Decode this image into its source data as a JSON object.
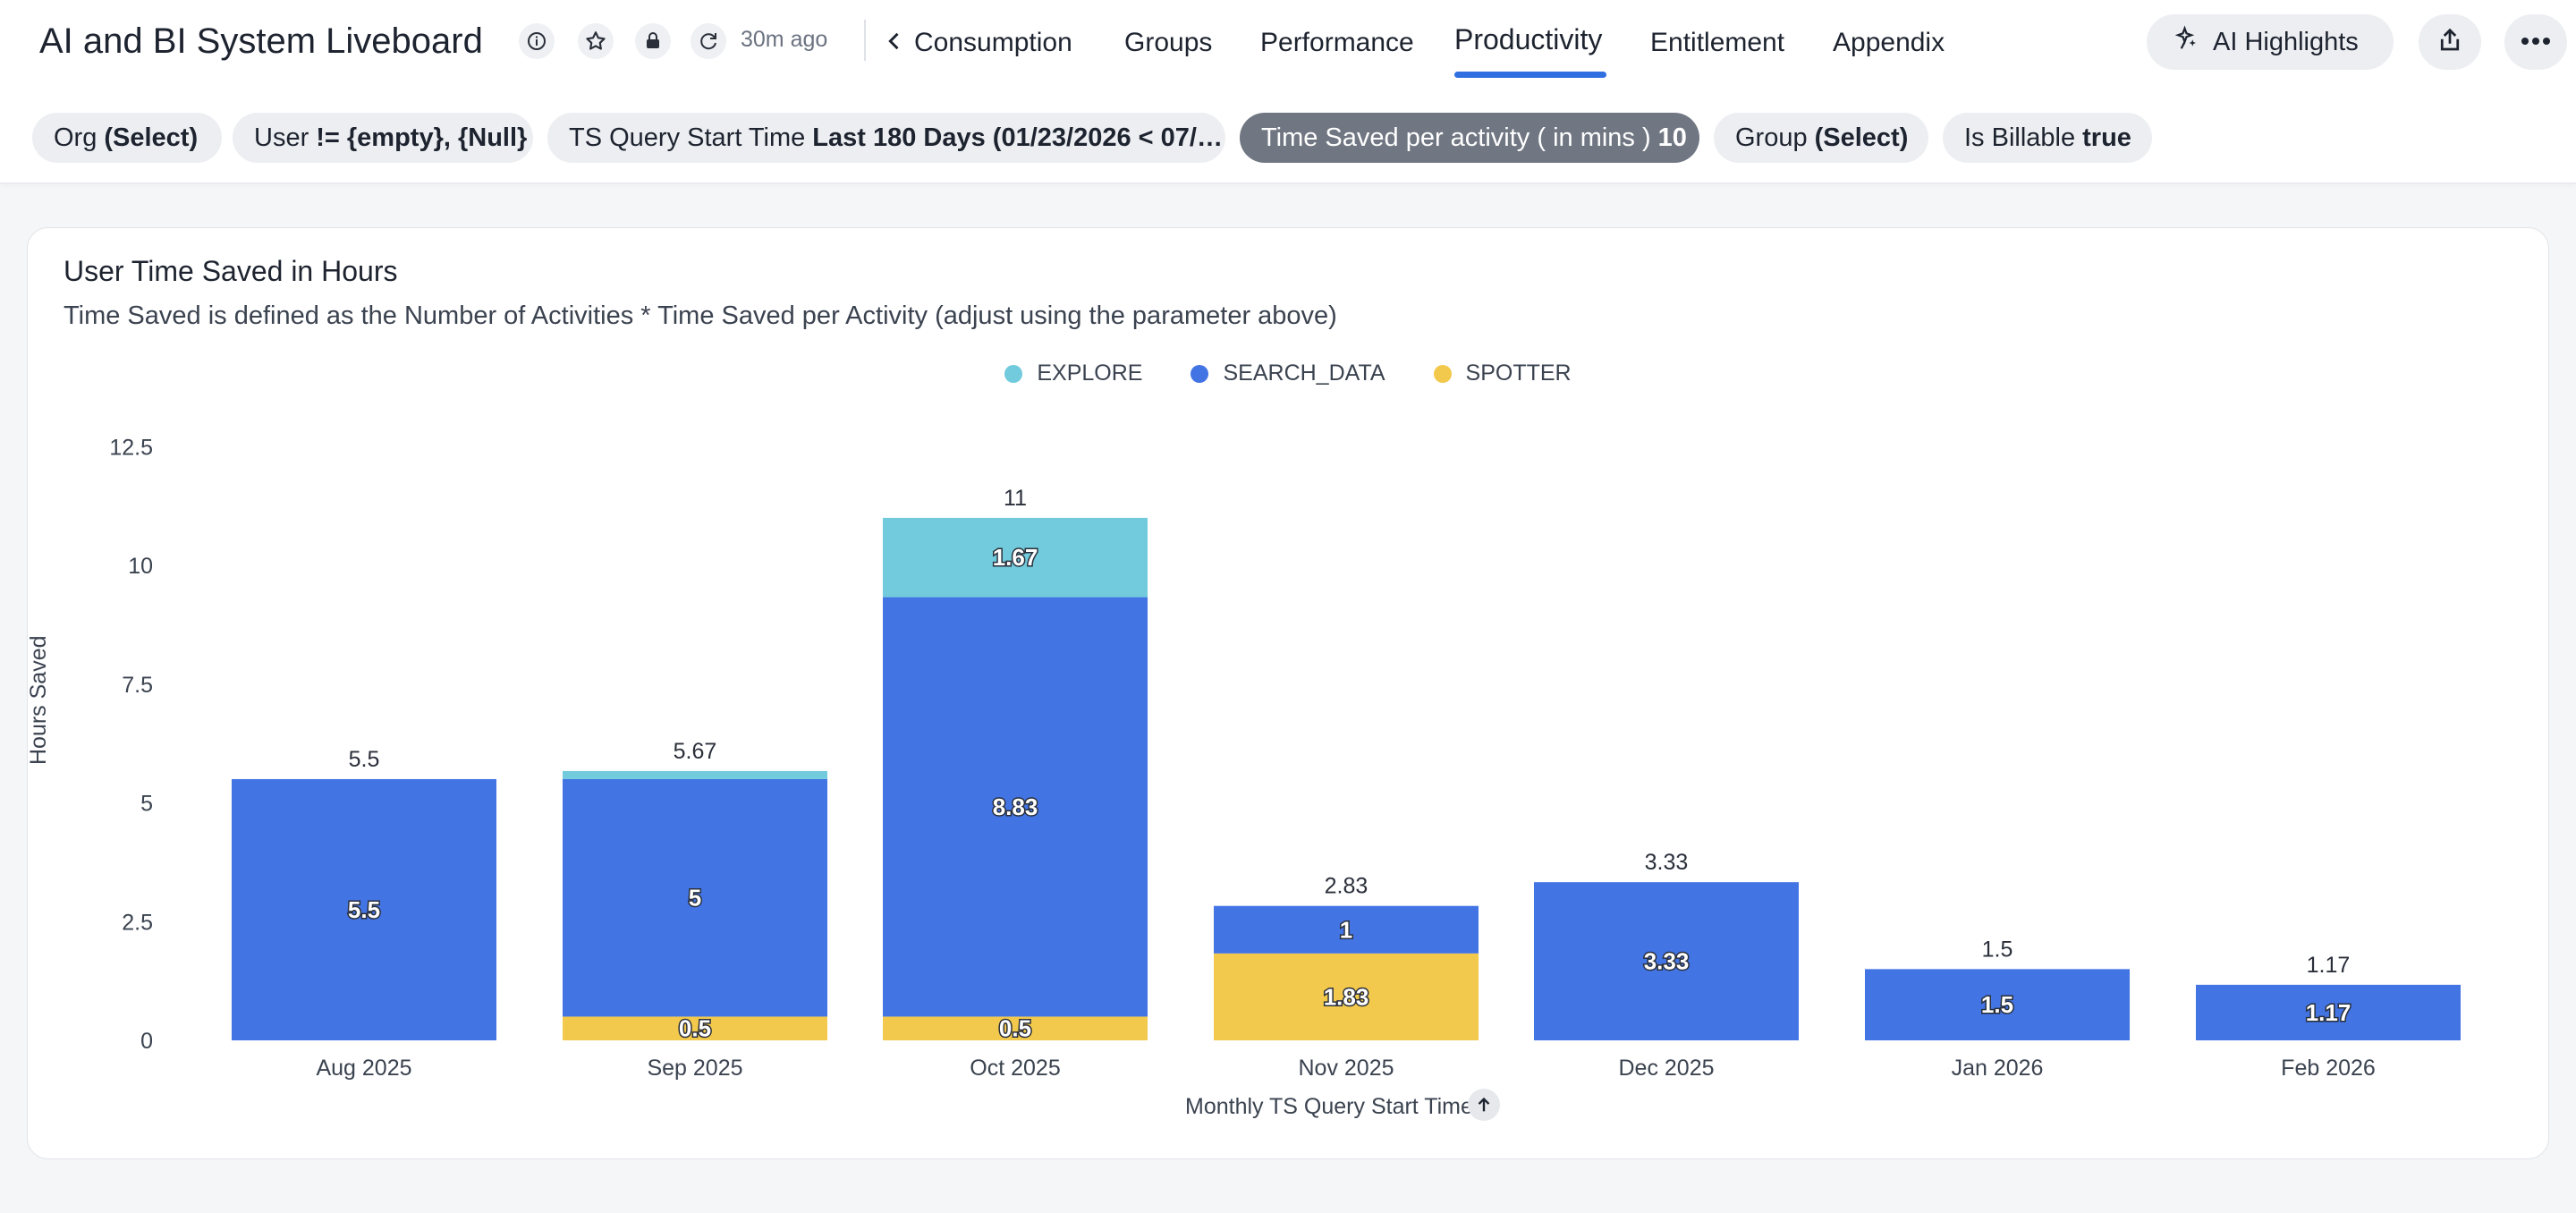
{
  "header": {
    "title": "AI and BI System Liveboard",
    "updated": "30m ago",
    "tabs": [
      {
        "label": "Consumption"
      },
      {
        "label": "Groups"
      },
      {
        "label": "Performance"
      },
      {
        "label": "Productivity",
        "active": true
      },
      {
        "label": "Entitlement"
      },
      {
        "label": "Appendix"
      }
    ],
    "ai_highlights_label": "AI Highlights",
    "icons": [
      "info-icon",
      "star-icon",
      "lock-icon",
      "refresh-icon",
      "chevron-left-icon",
      "sparkle-icon",
      "share-icon",
      "more-icon"
    ]
  },
  "filters": [
    {
      "name": "Org",
      "value": "(Select)"
    },
    {
      "name": "User",
      "value": "!= {empty}, {Null}"
    },
    {
      "name": "TS Query Start Time",
      "value": "Last 180 Days (01/23/2026 < 07/…"
    },
    {
      "name": "Time Saved per activity ( in mins )",
      "value": "10",
      "highlighted": true
    },
    {
      "name": "Group",
      "value": "(Select)"
    },
    {
      "name": "Is Billable",
      "value": "true"
    }
  ],
  "card": {
    "title": "User Time Saved in Hours",
    "subtitle": "Time Saved is defined as the Number of Activities * Time Saved per Activity (adjust using the parameter above)"
  },
  "chart_data": {
    "type": "bar",
    "stacked": true,
    "categories": [
      "Aug 2025",
      "Sep 2025",
      "Oct 2025",
      "Nov 2025",
      "Dec 2025",
      "Jan 2026",
      "Feb 2026"
    ],
    "series": [
      {
        "name": "SPOTTER",
        "color": "#f2c94c",
        "values": [
          0,
          0.5,
          0.5,
          1.83,
          0,
          0,
          0
        ],
        "labels": [
          "",
          "0.5",
          "0.5",
          "1.83",
          "",
          "",
          ""
        ]
      },
      {
        "name": "SEARCH_DATA",
        "color": "#4274e4",
        "values": [
          5.5,
          5,
          8.83,
          1,
          3.33,
          1.5,
          1.17
        ],
        "labels": [
          "5.5",
          "5",
          "8.83",
          "1",
          "3.33",
          "1.5",
          "1.17"
        ]
      },
      {
        "name": "EXPLORE",
        "color": "#71cbdc",
        "values": [
          0,
          0.17,
          1.67,
          0,
          0,
          0,
          0
        ],
        "labels": [
          "",
          "",
          "1.67",
          "",
          "",
          "",
          ""
        ]
      }
    ],
    "totals": [
      "5.5",
      "5.67",
      "11",
      "2.83",
      "3.33",
      "1.5",
      "1.17"
    ],
    "legend_order": [
      "EXPLORE",
      "SEARCH_DATA",
      "SPOTTER"
    ],
    "legend_position": "top-center",
    "ylabel": "Hours Saved",
    "xlabel": "Monthly TS Query Start Time",
    "ylim": [
      0,
      12.5
    ],
    "yticks": [
      "0",
      "2.5",
      "5",
      "7.5",
      "10",
      "12.5"
    ],
    "grid": false
  }
}
